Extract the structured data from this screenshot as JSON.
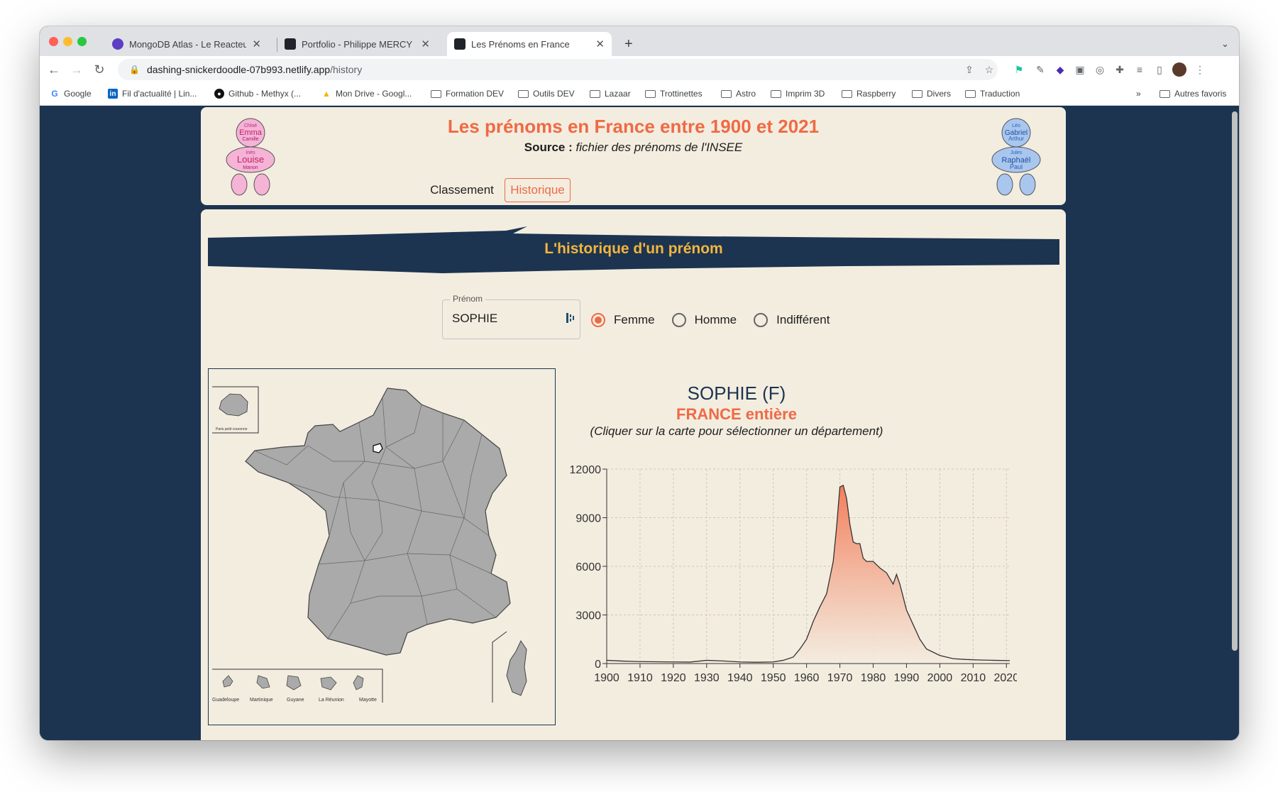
{
  "browser": {
    "tabs": [
      {
        "title": "MongoDB Atlas - Le Reacteur",
        "favicon_color": "#5c3fc4"
      },
      {
        "title": "Portfolio - Philippe MERCY",
        "favicon_color": "#20232a"
      },
      {
        "title": "Les Prénoms en France",
        "favicon_color": "#20232a"
      }
    ],
    "url_host": "dashing-snickerdoodle-07b993.netlify.app",
    "url_path": "/history",
    "bookmarks": [
      {
        "label": "Google",
        "type": "google"
      },
      {
        "label": "Fil d'actualité | Lin...",
        "type": "linkedin"
      },
      {
        "label": "Github - Methyx (...",
        "type": "github"
      },
      {
        "label": "Mon Drive - Googl...",
        "type": "drive"
      },
      {
        "label": "Formation DEV",
        "type": "folder"
      },
      {
        "label": "Outils DEV",
        "type": "folder"
      },
      {
        "label": "Lazaar",
        "type": "folder"
      },
      {
        "label": "Trottinettes",
        "type": "folder"
      },
      {
        "label": "Astro",
        "type": "folder"
      },
      {
        "label": "Imprim 3D",
        "type": "folder"
      },
      {
        "label": "Raspberry",
        "type": "folder"
      },
      {
        "label": "Divers",
        "type": "folder"
      },
      {
        "label": "Traduction",
        "type": "folder"
      }
    ],
    "more_bookmarks": "»",
    "other_bookmarks": "Autres favoris"
  },
  "header": {
    "title": "Les prénoms en France entre 1900 et 2021",
    "source_prefix": "Source : ",
    "source_text": "fichier des prénoms de l'INSEE",
    "nav": [
      {
        "label": "Classement",
        "active": false
      },
      {
        "label": "Historique",
        "active": true
      }
    ],
    "girl_names": [
      "Chloé",
      "Emma",
      "Camille",
      "Inès",
      "Louise",
      "Manon"
    ],
    "boy_names": [
      "Léo",
      "Gabriel",
      "Arthur",
      "Jules",
      "Raphaël",
      "Paul"
    ]
  },
  "section": {
    "title": "L'historique d'un prénom"
  },
  "form": {
    "field_label": "Prénom",
    "field_value": "SOPHIE",
    "radios": [
      {
        "label": "Femme",
        "checked": true
      },
      {
        "label": "Homme",
        "checked": false
      },
      {
        "label": "Indifférent",
        "checked": false
      }
    ]
  },
  "map": {
    "inset_labels": [
      "Paris petit couronne",
      "Guadeloupe",
      "Martinique",
      "Guyane",
      "La Réunion",
      "Mayotte"
    ]
  },
  "chart_heading": {
    "title": "SOPHIE (F)",
    "subtitle": "FRANCE entière",
    "hint": "(Cliquer sur la carte pour sélectionner un département)"
  },
  "chart_data": {
    "type": "area",
    "x": [
      1900,
      1905,
      1910,
      1915,
      1920,
      1925,
      1930,
      1935,
      1940,
      1945,
      1950,
      1953,
      1956,
      1958,
      1960,
      1962,
      1964,
      1966,
      1968,
      1969,
      1970,
      1971,
      1972,
      1973,
      1974,
      1975,
      1976,
      1977,
      1978,
      1980,
      1982,
      1984,
      1986,
      1987,
      1988,
      1990,
      1992,
      1994,
      1996,
      1998,
      2000,
      2004,
      2008,
      2012,
      2016,
      2021
    ],
    "y": [
      200,
      150,
      120,
      110,
      100,
      90,
      200,
      160,
      100,
      80,
      100,
      200,
      400,
      900,
      1500,
      2600,
      3500,
      4300,
      6300,
      8400,
      10900,
      11000,
      10200,
      8600,
      7500,
      7400,
      7400,
      6500,
      6300,
      6300,
      5900,
      5600,
      4900,
      5500,
      4900,
      3300,
      2400,
      1500,
      900,
      700,
      500,
      300,
      250,
      220,
      200,
      180
    ],
    "xlim": [
      1900,
      2021
    ],
    "ylim": [
      0,
      12000
    ],
    "x_ticks": [
      1900,
      1910,
      1920,
      1930,
      1940,
      1950,
      1960,
      1970,
      1980,
      1990,
      2000,
      2010,
      2020
    ],
    "y_ticks": [
      0,
      3000,
      6000,
      9000,
      12000
    ],
    "grid": true,
    "fill_top_color": "#f37e5c",
    "fill_bottom_color": "#f3ede0",
    "line_color": "#333333"
  },
  "colors": {
    "accent": "#ef6a44",
    "navy": "#1c3450",
    "gold": "#f3b53e",
    "cream": "#f3ede0",
    "map_fill": "#aaaaaa"
  }
}
